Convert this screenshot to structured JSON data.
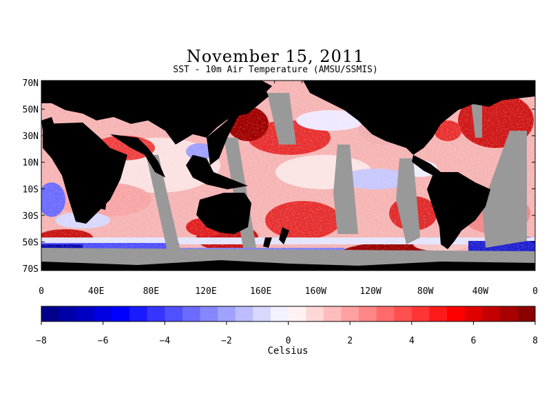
{
  "title": "November 15, 2011",
  "subtitle": "SST - 10m Air Temperature (AMSU/SSMIS)",
  "map": {
    "lat_labels": [
      "70N",
      "50N",
      "30N",
      "10N",
      "10S",
      "30S",
      "50S",
      "70S"
    ],
    "lon_labels": [
      "0",
      "40E",
      "80E",
      "120E",
      "160E",
      "160W",
      "120W",
      "80W",
      "40W",
      "0"
    ]
  },
  "colorbar": {
    "label": "Celsius",
    "ticks": [
      "−8",
      "−6",
      "−4",
      "−2",
      "0",
      "2",
      "4",
      "6",
      "8"
    ],
    "min": -8,
    "max": 8,
    "bins": 28
  },
  "colors": {
    "land": "#000000",
    "missing": "#999999",
    "cold": "#00008b",
    "neutral": "#ffffff",
    "warm": "#8b0000"
  }
}
